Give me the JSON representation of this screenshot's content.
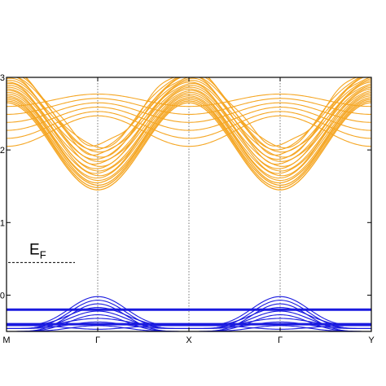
{
  "chart_data": {
    "type": "line",
    "title": "",
    "xlabel": "",
    "ylabel": "",
    "x_ticks": [
      "M",
      "Γ",
      "X",
      "Γ",
      "Y"
    ],
    "y_ticks": [
      "0",
      "1",
      "2",
      "3"
    ],
    "ylim": [
      -0.5,
      3.0
    ],
    "grid": "vertical dotted lines at the Γ, X and Γ points",
    "fermi_level": {
      "label_main": "E",
      "label_sub": "F",
      "y": 0.45
    },
    "series": [
      {
        "role": "conduction bands",
        "color": "#f5a623",
        "band_count": 20,
        "minimum_energy_at_gamma": 1.45,
        "values_at_high_symmetry_points_lowest_band": [
          2.65,
          1.45,
          2.65,
          1.45,
          2.65
        ]
      },
      {
        "role": "valence bands",
        "color": "#1a1adf",
        "band_count": 10,
        "maximum_energy_at_gamma": -0.02,
        "flat_band_energies": [
          -0.2,
          -0.4
        ]
      }
    ]
  }
}
